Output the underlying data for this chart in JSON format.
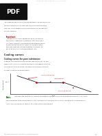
{
  "title_line1": "SOLID-LIQUID PHASE DIAGRAMS: TIN",
  "title_line2": "AND LEAD",
  "page_header": "chemguide: Support for CIE A level Chemistry",
  "section_title": "Cooling curves",
  "subsection_title": "Cooling curves for pure substances",
  "body_text1a": "This page explains the relationship between the cooling curves",
  "body_text1b": "for liquid mixtures of tin and lead, and the resulting phase",
  "body_text1c": "diagram. It also offers a simple introduction to the idea of a",
  "body_text1d": "eutectic mixture.",
  "important_label": "Important:",
  "important_text": "This page is only really designed to be an introduction to the topic, suitable for students at A level who aren't (in A level chemistry) far past the phase diagram used in a simplified version of this theory. If you need a more detailed treatment of phase diagrams, I'm afraid I will get a link to the correct phase diagram later.",
  "body_text2a": "Suppose you have some pure molten lead and allow it to cool",
  "body_text2b": "slowly until it has all solidified, plotting the temperature all the",
  "body_text2c": "time against time as you go. You would end up with a typical",
  "body_text2d": "cooling curve for a pure substance.",
  "graph_ylabel": "temperature",
  "graph_xlabel": "time",
  "annotation1": "liquid lead cooling",
  "annotation2": "lead freezing",
  "annotation3": "solid lead cooling",
  "temp_label": "327°C",
  "note_label": "Note:",
  "note_text1": "Just before the liquid freezes, there is sometimes a slight dip in the curve below the freezing point. This is often",
  "note_text2": "called taking the curve at some supercooling. The temperature rises back to the normal freezing point. Supercooling and",
  "note_text3": "‘arrest’ for this problem are labelled, so I'm ignoring it in the diagrams.",
  "footer_text": "http://www.chemguide.co.uk/physical/phaseeq/snpb.html",
  "footer_page": "1/11",
  "bg_color": "#ffffff",
  "header_bg": "#1e1e1e",
  "pdf_bg": "#111111",
  "important_bg": "#fde8e8",
  "note_bg": "#e8f5e8",
  "curve_color": "#000000",
  "annotation_color": "#cc0000",
  "dot_color": "#cc0000",
  "text_color": "#333333",
  "header_text_color": "#ffffff",
  "header_top_color": "#888888"
}
